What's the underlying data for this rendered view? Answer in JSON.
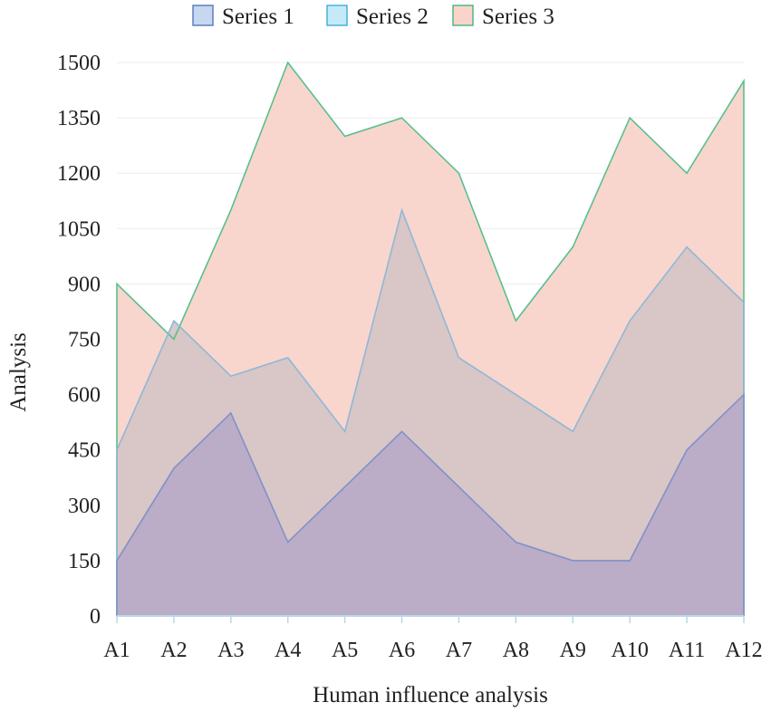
{
  "chart_data": {
    "type": "area",
    "title": "",
    "xlabel": "Human influence analysis",
    "ylabel": "Analysis",
    "categories": [
      "A1",
      "A2",
      "A3",
      "A4",
      "A5",
      "A6",
      "A7",
      "A8",
      "A9",
      "A10",
      "A11",
      "A12"
    ],
    "ylim": [
      0,
      1500
    ],
    "yticks": [
      0,
      150,
      300,
      450,
      600,
      750,
      900,
      1050,
      1200,
      1350,
      1500
    ],
    "grid": true,
    "legend_position": "top-center",
    "series": [
      {
        "name": "Series 1",
        "values": [
          150,
          400,
          550,
          200,
          350,
          500,
          350,
          200,
          150,
          150,
          450,
          600
        ],
        "fill": "#b9a9c8",
        "stroke": "#7f92c8",
        "legend_fill": "#c6d7ef",
        "legend_stroke": "#5f7fbf"
      },
      {
        "name": "Series 2",
        "values": [
          450,
          800,
          650,
          700,
          500,
          1100,
          700,
          600,
          500,
          800,
          1000,
          850
        ],
        "fill": "#d6c4c5",
        "stroke": "#8fb8d6",
        "legend_fill": "#c6e9f7",
        "legend_stroke": "#45b3df"
      },
      {
        "name": "Series 3",
        "values": [
          900,
          750,
          1100,
          1500,
          1300,
          1350,
          1200,
          800,
          1000,
          1350,
          1200,
          1450
        ],
        "fill": "#f7d2ca",
        "stroke": "#59c08c",
        "legend_fill": "#fad4cb",
        "legend_stroke": "#4fb985"
      }
    ]
  }
}
